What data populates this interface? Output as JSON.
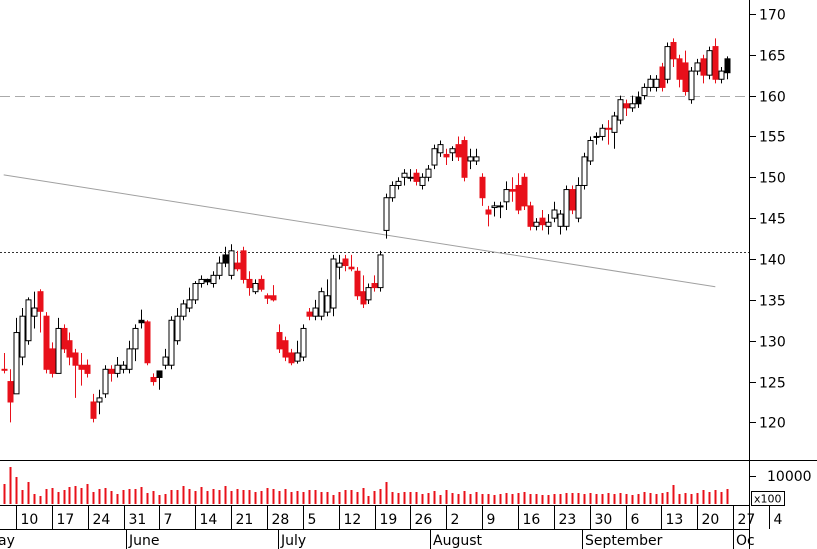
{
  "chart_data": {
    "type": "candlestick",
    "title": "",
    "price_axis": {
      "ticks": [
        "170",
        "165",
        "160",
        "155",
        "150",
        "145",
        "140",
        "135",
        "130",
        "125",
        "120"
      ],
      "range": [
        115.4,
        171.7
      ]
    },
    "volume_axis": {
      "tick": "10000",
      "unit_label": "x100"
    },
    "date_ticks": [
      "10",
      "17",
      "24",
      "31",
      "7",
      "14",
      "21",
      "28",
      "5",
      "12",
      "19",
      "26",
      "2",
      "9",
      "16",
      "23",
      "30",
      "6",
      "13",
      "20",
      "27",
      "4"
    ],
    "month_labels": [
      "ay",
      "June",
      "July",
      "August",
      "September",
      "Oc"
    ],
    "reference_lines": {
      "dashed": 160,
      "dotted": 140.8
    },
    "trendline": {
      "from_day": 0,
      "from_value": 150.3,
      "to_day": 119,
      "to_value": 136.6
    },
    "colors": {
      "up": "#ffffff",
      "down": "#e8101a",
      "black_candle": "#000000",
      "volume": "#e8101a",
      "trendline": "#a0a0a0",
      "reference": "#777777"
    },
    "candles": [
      {
        "o": 126.5,
        "h": 128.5,
        "l": 126,
        "c": 126.5,
        "k": "d"
      },
      {
        "o": 125,
        "h": 126.5,
        "l": 120,
        "c": 122.5,
        "k": "d"
      },
      {
        "o": 123.5,
        "h": 132.8,
        "l": 123.5,
        "c": 131,
        "k": "u"
      },
      {
        "o": 128,
        "h": 134,
        "l": 127,
        "c": 133,
        "k": "u"
      },
      {
        "o": 130,
        "h": 135.3,
        "l": 129.5,
        "c": 135,
        "k": "u"
      },
      {
        "o": 134,
        "h": 136,
        "l": 131.5,
        "c": 133,
        "k": "u"
      },
      {
        "o": 136,
        "h": 136.3,
        "l": 131,
        "c": 133.6,
        "k": "d"
      },
      {
        "o": 133,
        "h": 133.5,
        "l": 126,
        "c": 126.5,
        "k": "d"
      },
      {
        "o": 129,
        "h": 129.8,
        "l": 125.5,
        "c": 126,
        "k": "d"
      },
      {
        "o": 126,
        "h": 132.8,
        "l": 126,
        "c": 131.5,
        "k": "u"
      },
      {
        "o": 131.5,
        "h": 132,
        "l": 128.5,
        "c": 129,
        "k": "d"
      },
      {
        "o": 130,
        "h": 131,
        "l": 127,
        "c": 128,
        "k": "d"
      },
      {
        "o": 128.5,
        "h": 129,
        "l": 123,
        "c": 127,
        "k": "d"
      },
      {
        "o": 127,
        "h": 128.5,
        "l": 124.5,
        "c": 126.5,
        "k": "d"
      },
      {
        "o": 127,
        "h": 127.7,
        "l": 125.5,
        "c": 126,
        "k": "d"
      },
      {
        "o": 122.5,
        "h": 123.5,
        "l": 120,
        "c": 120.5,
        "k": "d"
      },
      {
        "o": 122.5,
        "h": 124,
        "l": 121,
        "c": 123,
        "k": "u"
      },
      {
        "o": 123.5,
        "h": 127,
        "l": 123,
        "c": 126.5,
        "k": "u"
      },
      {
        "o": 126.5,
        "h": 127,
        "l": 125,
        "c": 126,
        "k": "d"
      },
      {
        "o": 126,
        "h": 128,
        "l": 125.5,
        "c": 127,
        "k": "u"
      },
      {
        "o": 126.5,
        "h": 127.5,
        "l": 126,
        "c": 127,
        "k": "u"
      },
      {
        "o": 126.5,
        "h": 130,
        "l": 126,
        "c": 129,
        "k": "u"
      },
      {
        "o": 129,
        "h": 132,
        "l": 127.5,
        "c": 131.5,
        "k": "u"
      },
      {
        "o": 132.5,
        "h": 133.8,
        "l": 131.5,
        "c": 132.2,
        "k": "b"
      },
      {
        "o": 132.3,
        "h": 132.5,
        "l": 127,
        "c": 127.3,
        "k": "d"
      },
      {
        "o": 125.5,
        "h": 126,
        "l": 124.5,
        "c": 125,
        "k": "d"
      },
      {
        "o": 125.5,
        "h": 126,
        "l": 124,
        "c": 126.3,
        "k": "b"
      },
      {
        "o": 127,
        "h": 129,
        "l": 126.5,
        "c": 128,
        "k": "u"
      },
      {
        "o": 127,
        "h": 133,
        "l": 126.5,
        "c": 132.5,
        "k": "u"
      },
      {
        "o": 130,
        "h": 134,
        "l": 129.5,
        "c": 133,
        "k": "u"
      },
      {
        "o": 133,
        "h": 135,
        "l": 132.5,
        "c": 134.5,
        "k": "u"
      },
      {
        "o": 134,
        "h": 136.5,
        "l": 133.5,
        "c": 135,
        "k": "u"
      },
      {
        "o": 135,
        "h": 137.3,
        "l": 134.5,
        "c": 137,
        "k": "u"
      },
      {
        "o": 137,
        "h": 138,
        "l": 136.5,
        "c": 137.5,
        "k": "u"
      },
      {
        "o": 137.5,
        "h": 137.6,
        "l": 136.8,
        "c": 137.2,
        "k": "b"
      },
      {
        "o": 137,
        "h": 138.5,
        "l": 136.5,
        "c": 138,
        "k": "u"
      },
      {
        "o": 138,
        "h": 140.3,
        "l": 137.5,
        "c": 139.5,
        "k": "u"
      },
      {
        "o": 139.5,
        "h": 141.5,
        "l": 139,
        "c": 140.5,
        "k": "b"
      },
      {
        "o": 138,
        "h": 141.8,
        "l": 137.5,
        "c": 141,
        "k": "u"
      },
      {
        "o": 139.5,
        "h": 141,
        "l": 138.5,
        "c": 138.8,
        "k": "d"
      },
      {
        "o": 141,
        "h": 141.5,
        "l": 137,
        "c": 137.5,
        "k": "d"
      },
      {
        "o": 137.5,
        "h": 138.5,
        "l": 135.5,
        "c": 136.5,
        "k": "d"
      },
      {
        "o": 136,
        "h": 137.5,
        "l": 135.7,
        "c": 137,
        "k": "u"
      },
      {
        "o": 137.5,
        "h": 138,
        "l": 136,
        "c": 136.3,
        "k": "d"
      },
      {
        "o": 135.5,
        "h": 135.8,
        "l": 134.5,
        "c": 135.2,
        "k": "d"
      },
      {
        "o": 135.5,
        "h": 136.8,
        "l": 134.8,
        "c": 135,
        "k": "d"
      },
      {
        "o": 131,
        "h": 132,
        "l": 128.5,
        "c": 129,
        "k": "d"
      },
      {
        "o": 130,
        "h": 130.5,
        "l": 127.5,
        "c": 128,
        "k": "d"
      },
      {
        "o": 128.5,
        "h": 129,
        "l": 127,
        "c": 127.3,
        "k": "d"
      },
      {
        "o": 127.5,
        "h": 130,
        "l": 127.2,
        "c": 128.5,
        "k": "u"
      },
      {
        "o": 128,
        "h": 132,
        "l": 127.5,
        "c": 131.5,
        "k": "u"
      },
      {
        "o": 133.5,
        "h": 134,
        "l": 132.5,
        "c": 133,
        "k": "d"
      },
      {
        "o": 133,
        "h": 135,
        "l": 132.5,
        "c": 134,
        "k": "u"
      },
      {
        "o": 133,
        "h": 136.5,
        "l": 132.5,
        "c": 136,
        "k": "u"
      },
      {
        "o": 135.5,
        "h": 137.5,
        "l": 133,
        "c": 133.5,
        "k": "u"
      },
      {
        "o": 134,
        "h": 140.5,
        "l": 133,
        "c": 140,
        "k": "u"
      },
      {
        "o": 139.5,
        "h": 140.5,
        "l": 137.5,
        "c": 139,
        "k": "u"
      },
      {
        "o": 140,
        "h": 140.5,
        "l": 138.5,
        "c": 139.2,
        "k": "d"
      },
      {
        "o": 139,
        "h": 140.5,
        "l": 138.5,
        "c": 138.8,
        "k": "d"
      },
      {
        "o": 138.5,
        "h": 139,
        "l": 135,
        "c": 135.5,
        "k": "d"
      },
      {
        "o": 136,
        "h": 138,
        "l": 134,
        "c": 134.5,
        "k": "d"
      },
      {
        "o": 135,
        "h": 137,
        "l": 134.5,
        "c": 136.5,
        "k": "u"
      },
      {
        "o": 137,
        "h": 138,
        "l": 136,
        "c": 136.5,
        "k": "d"
      },
      {
        "o": 136.5,
        "h": 141,
        "l": 136,
        "c": 140.5,
        "k": "u"
      },
      {
        "o": 143.5,
        "h": 148,
        "l": 142.5,
        "c": 147.5,
        "k": "u"
      },
      {
        "o": 147.5,
        "h": 149.5,
        "l": 147,
        "c": 149,
        "k": "u"
      },
      {
        "o": 149,
        "h": 150,
        "l": 148.5,
        "c": 149.5,
        "k": "u"
      },
      {
        "o": 150,
        "h": 151,
        "l": 149,
        "c": 150.5,
        "k": "u"
      },
      {
        "o": 150,
        "h": 151,
        "l": 149.5,
        "c": 150,
        "k": "u"
      },
      {
        "o": 150.5,
        "h": 151,
        "l": 149,
        "c": 149.5,
        "k": "d"
      },
      {
        "o": 149,
        "h": 150.5,
        "l": 148.5,
        "c": 150,
        "k": "u"
      },
      {
        "o": 150,
        "h": 151.5,
        "l": 149.5,
        "c": 151,
        "k": "u"
      },
      {
        "o": 151.5,
        "h": 154,
        "l": 151,
        "c": 153.5,
        "k": "u"
      },
      {
        "o": 153,
        "h": 154.5,
        "l": 152.5,
        "c": 154,
        "k": "u"
      },
      {
        "o": 152.5,
        "h": 153.5,
        "l": 151.5,
        "c": 152.8,
        "k": "d"
      },
      {
        "o": 153.5,
        "h": 153.8,
        "l": 152,
        "c": 153,
        "k": "u"
      },
      {
        "o": 154,
        "h": 155,
        "l": 152,
        "c": 152.5,
        "k": "d"
      },
      {
        "o": 154.5,
        "h": 155,
        "l": 149.5,
        "c": 150,
        "k": "d"
      },
      {
        "o": 152,
        "h": 153.5,
        "l": 151,
        "c": 152.5,
        "k": "u"
      },
      {
        "o": 152.5,
        "h": 153.5,
        "l": 151.5,
        "c": 152,
        "k": "u"
      },
      {
        "o": 150,
        "h": 150.5,
        "l": 146.5,
        "c": 147.5,
        "k": "d"
      },
      {
        "o": 146,
        "h": 146.5,
        "l": 144,
        "c": 145.5,
        "k": "d"
      },
      {
        "o": 146.5,
        "h": 147,
        "l": 145.2,
        "c": 146.3,
        "k": "u"
      },
      {
        "o": 146.5,
        "h": 147,
        "l": 145,
        "c": 146.5,
        "k": "u"
      },
      {
        "o": 147,
        "h": 149.5,
        "l": 146,
        "c": 148.5,
        "k": "u"
      },
      {
        "o": 148.5,
        "h": 150,
        "l": 147,
        "c": 148.3,
        "k": "d"
      },
      {
        "o": 149,
        "h": 150.5,
        "l": 145.5,
        "c": 146,
        "k": "d"
      },
      {
        "o": 150,
        "h": 150.5,
        "l": 146,
        "c": 146.5,
        "k": "d"
      },
      {
        "o": 146.5,
        "h": 147,
        "l": 143.5,
        "c": 144,
        "k": "d"
      },
      {
        "o": 144.5,
        "h": 145,
        "l": 143.5,
        "c": 144,
        "k": "u"
      },
      {
        "o": 145,
        "h": 146,
        "l": 143.5,
        "c": 144.2,
        "k": "d"
      },
      {
        "o": 144,
        "h": 145.5,
        "l": 143,
        "c": 144.5,
        "k": "u"
      },
      {
        "o": 145,
        "h": 147,
        "l": 144.5,
        "c": 146,
        "k": "u"
      },
      {
        "o": 144,
        "h": 146,
        "l": 143,
        "c": 145.5,
        "k": "u"
      },
      {
        "o": 144,
        "h": 149,
        "l": 143.5,
        "c": 148.5,
        "k": "u"
      },
      {
        "o": 148.5,
        "h": 149,
        "l": 145.5,
        "c": 146,
        "k": "d"
      },
      {
        "o": 145,
        "h": 150,
        "l": 144.5,
        "c": 149,
        "k": "u"
      },
      {
        "o": 149,
        "h": 153,
        "l": 148.5,
        "c": 152.5,
        "k": "u"
      },
      {
        "o": 152,
        "h": 155,
        "l": 151.5,
        "c": 154.5,
        "k": "u"
      },
      {
        "o": 155,
        "h": 155.5,
        "l": 154,
        "c": 155,
        "k": "u"
      },
      {
        "o": 155,
        "h": 156.5,
        "l": 154.5,
        "c": 156,
        "k": "u"
      },
      {
        "o": 156,
        "h": 157,
        "l": 154,
        "c": 156,
        "k": "d"
      },
      {
        "o": 155.5,
        "h": 158,
        "l": 153.5,
        "c": 157.5,
        "k": "u"
      },
      {
        "o": 157,
        "h": 160,
        "l": 156.5,
        "c": 159.5,
        "k": "u"
      },
      {
        "o": 159,
        "h": 159.5,
        "l": 157.5,
        "c": 158.5,
        "k": "d"
      },
      {
        "o": 158.5,
        "h": 160,
        "l": 158,
        "c": 159,
        "k": "u"
      },
      {
        "o": 159,
        "h": 160.5,
        "l": 158.5,
        "c": 159.8,
        "k": "b"
      },
      {
        "o": 160,
        "h": 161.5,
        "l": 159.5,
        "c": 161,
        "k": "u"
      },
      {
        "o": 161,
        "h": 162.5,
        "l": 160.5,
        "c": 162,
        "k": "u"
      },
      {
        "o": 161,
        "h": 162.5,
        "l": 160.5,
        "c": 162,
        "k": "u"
      },
      {
        "o": 163.5,
        "h": 164,
        "l": 160.5,
        "c": 161,
        "k": "d"
      },
      {
        "o": 162,
        "h": 166.5,
        "l": 161.5,
        "c": 166,
        "k": "u"
      },
      {
        "o": 166.5,
        "h": 167,
        "l": 163.5,
        "c": 164.5,
        "k": "d"
      },
      {
        "o": 164.5,
        "h": 165,
        "l": 161,
        "c": 162,
        "k": "d"
      },
      {
        "o": 164,
        "h": 165.5,
        "l": 160,
        "c": 160.5,
        "k": "d"
      },
      {
        "o": 159.5,
        "h": 163.5,
        "l": 159,
        "c": 163,
        "k": "u"
      },
      {
        "o": 163,
        "h": 164.5,
        "l": 162.5,
        "c": 164,
        "k": "u"
      },
      {
        "o": 164.5,
        "h": 165,
        "l": 161.5,
        "c": 162.5,
        "k": "d"
      },
      {
        "o": 162.5,
        "h": 166,
        "l": 162,
        "c": 165.5,
        "k": "u"
      },
      {
        "o": 166,
        "h": 167,
        "l": 161.5,
        "c": 162,
        "k": "d"
      },
      {
        "o": 162,
        "h": 163.5,
        "l": 161.5,
        "c": 163,
        "k": "u"
      },
      {
        "o": 164.5,
        "h": 164.8,
        "l": 162,
        "c": 162.8,
        "k": "b"
      }
    ],
    "volume": [
      20,
      37,
      27,
      14,
      22,
      10,
      8,
      15,
      16,
      12,
      14,
      17,
      18,
      16,
      20,
      12,
      15,
      16,
      13,
      10,
      14,
      15,
      15,
      17,
      11,
      13,
      9,
      10,
      14,
      14,
      18,
      15,
      13,
      17,
      13,
      15,
      14,
      18,
      13,
      15,
      14,
      14,
      12,
      13,
      16,
      15,
      13,
      15,
      12,
      13,
      12,
      14,
      14,
      12,
      12,
      9,
      12,
      14,
      14,
      12,
      16,
      8,
      13,
      15,
      22,
      12,
      11,
      12,
      12,
      12,
      10,
      11,
      13,
      9,
      14,
      11,
      10,
      13,
      10,
      12,
      10,
      10,
      9,
      10,
      11,
      10,
      11,
      12,
      10,
      10,
      9,
      9,
      10,
      10,
      11,
      11,
      11,
      10,
      11,
      10,
      10,
      11,
      10,
      11,
      10,
      9,
      10,
      12,
      11,
      10,
      11,
      12,
      19,
      10,
      11,
      10,
      11,
      14,
      12,
      14,
      12,
      15
    ]
  }
}
